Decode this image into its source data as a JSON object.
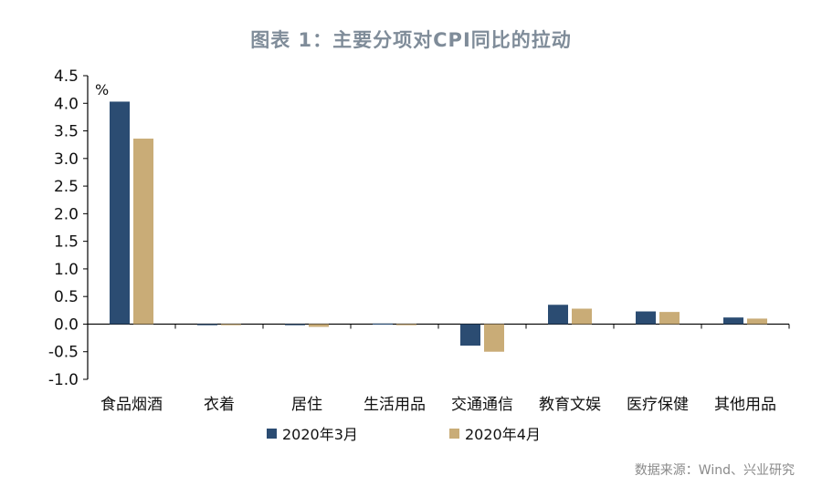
{
  "chart_data": {
    "type": "bar",
    "title": "图表 1：主要分项对CPI同比的拉动",
    "unit_label": "%",
    "categories": [
      "食品烟酒",
      "衣着",
      "居住",
      "生活用品",
      "交通通信",
      "教育文娱",
      "医疗保健",
      "其他用品"
    ],
    "series": [
      {
        "name": "2020年3月",
        "color": "#2b4c72",
        "values": [
          4.03,
          -0.02,
          -0.02,
          0.01,
          -0.39,
          0.35,
          0.23,
          0.12
        ]
      },
      {
        "name": "2020年4月",
        "color": "#c9ac77",
        "values": [
          3.36,
          -0.02,
          -0.05,
          0.0,
          -0.5,
          0.28,
          0.22,
          0.1
        ]
      }
    ],
    "ylim": [
      -1.0,
      4.5
    ],
    "yticks": [
      "4.5",
      "4.0",
      "3.5",
      "3.0",
      "2.5",
      "2.0",
      "1.5",
      "1.0",
      "0.5",
      "0.0",
      "-0.5",
      "-1.0"
    ],
    "legend_position": "bottom-center",
    "grid": false
  },
  "source": "数据来源：Wind、兴业研究"
}
